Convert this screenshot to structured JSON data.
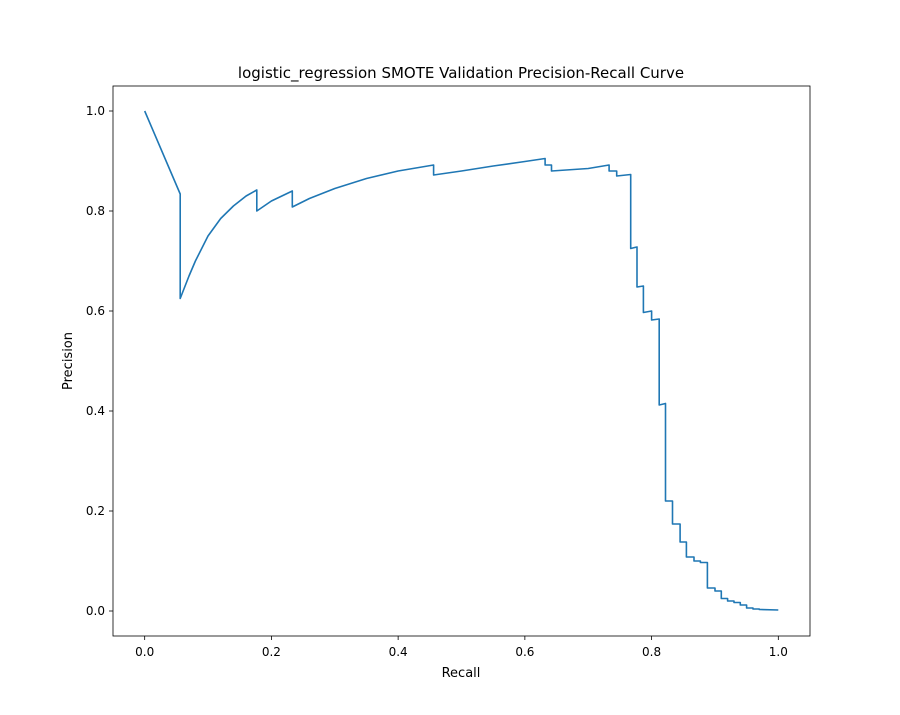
{
  "chart_data": {
    "type": "line",
    "title": "logistic_regression SMOTE Validation Precision-Recall Curve",
    "xlabel": "Recall",
    "ylabel": "Precision",
    "xlim": [
      -0.05,
      1.05
    ],
    "ylim": [
      -0.05,
      1.05
    ],
    "xticks": [
      0.0,
      0.2,
      0.4,
      0.6,
      0.8,
      1.0
    ],
    "xtick_labels": [
      "0.0",
      "0.2",
      "0.4",
      "0.6",
      "0.8",
      "1.0"
    ],
    "yticks": [
      0.0,
      0.2,
      0.4,
      0.6,
      0.8,
      1.0
    ],
    "ytick_labels": [
      "0.0",
      "0.2",
      "0.4",
      "0.6",
      "0.8",
      "1.0"
    ],
    "grid": false,
    "legend": "none",
    "series": [
      {
        "color": "#1f77b4",
        "x": [
          0.0,
          0.056,
          0.056,
          0.07,
          0.08,
          0.1,
          0.12,
          0.14,
          0.16,
          0.177,
          0.177,
          0.2,
          0.233,
          0.233,
          0.26,
          0.3,
          0.35,
          0.4,
          0.456,
          0.456,
          0.5,
          0.55,
          0.6,
          0.632,
          0.632,
          0.642,
          0.642,
          0.7,
          0.733,
          0.733,
          0.745,
          0.745,
          0.767,
          0.767,
          0.777,
          0.777,
          0.787,
          0.787,
          0.8,
          0.8,
          0.812,
          0.812,
          0.822,
          0.822,
          0.833,
          0.833,
          0.845,
          0.845,
          0.855,
          0.855,
          0.867,
          0.867,
          0.877,
          0.877,
          0.888,
          0.888,
          0.9,
          0.9,
          0.91,
          0.91,
          0.92,
          0.92,
          0.93,
          0.93,
          0.94,
          0.94,
          0.95,
          0.95,
          0.96,
          0.96,
          0.97,
          0.97,
          1.0
        ],
        "y": [
          1.0,
          0.834,
          0.625,
          0.67,
          0.7,
          0.75,
          0.785,
          0.81,
          0.83,
          0.842,
          0.8,
          0.82,
          0.84,
          0.808,
          0.825,
          0.845,
          0.865,
          0.88,
          0.892,
          0.872,
          0.88,
          0.89,
          0.899,
          0.905,
          0.892,
          0.892,
          0.88,
          0.885,
          0.892,
          0.88,
          0.88,
          0.87,
          0.873,
          0.725,
          0.728,
          0.648,
          0.65,
          0.597,
          0.6,
          0.582,
          0.584,
          0.412,
          0.415,
          0.22,
          0.22,
          0.174,
          0.174,
          0.138,
          0.138,
          0.108,
          0.108,
          0.1,
          0.1,
          0.097,
          0.097,
          0.046,
          0.046,
          0.04,
          0.04,
          0.025,
          0.025,
          0.02,
          0.02,
          0.017,
          0.017,
          0.012,
          0.012,
          0.006,
          0.006,
          0.004,
          0.004,
          0.003,
          0.002
        ]
      }
    ]
  }
}
